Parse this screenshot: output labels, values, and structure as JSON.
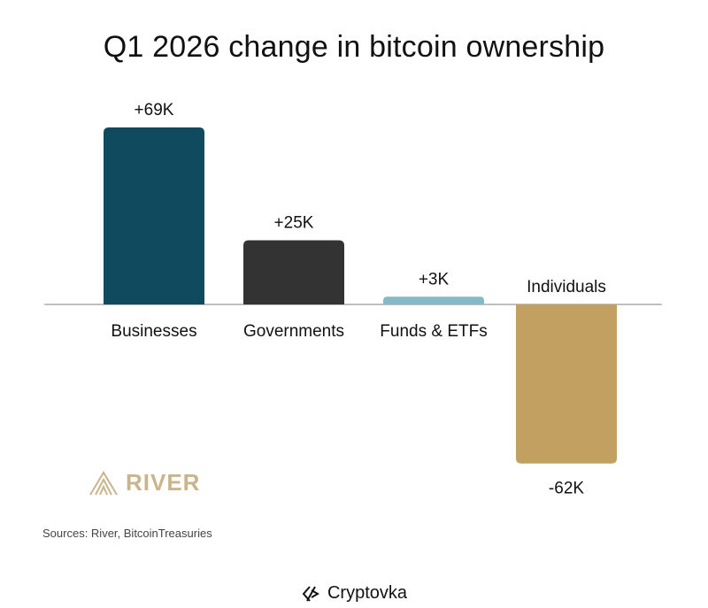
{
  "chart_data": {
    "type": "bar",
    "title": "Q1 2026 change in bitcoin ownership",
    "categories": [
      "Businesses",
      "Governments",
      "Funds & ETFs",
      "Individuals"
    ],
    "values": [
      69,
      25,
      3,
      -62
    ],
    "value_labels": [
      "+69K",
      "+25K",
      "+3K",
      "-62K"
    ],
    "unit": "K BTC",
    "colors": [
      "#0f4a5f",
      "#333333",
      "#86b9c7",
      "#c2a062"
    ],
    "xlabel": "",
    "ylabel": "",
    "ylim": [
      -62,
      69
    ],
    "grid": false,
    "legend": "none"
  },
  "branding": {
    "logo_text": "RIVER",
    "logo_color": "#c9b48c",
    "sources": "Sources: River, BitcoinTreasuries",
    "watermark": "Cryptovka"
  }
}
